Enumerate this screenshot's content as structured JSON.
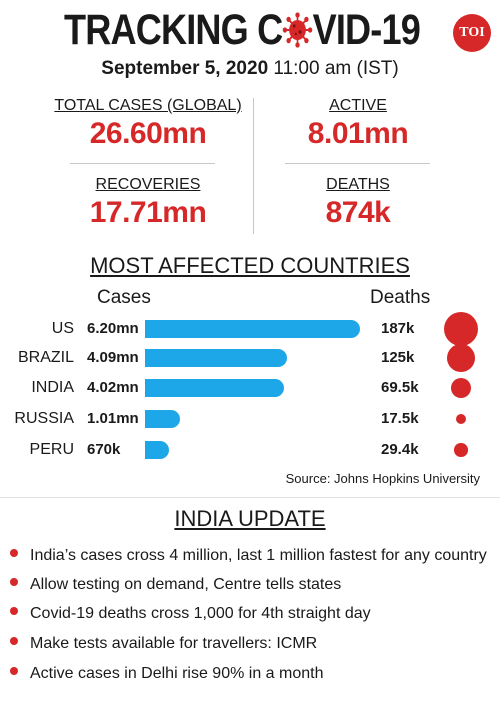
{
  "header": {
    "title_left": "TRACKING C",
    "title_right": "VID-19",
    "publisher_badge": "TOI",
    "date": "September 5, 2020",
    "time": "11:00 am (IST)"
  },
  "stats": {
    "total_cases": {
      "label": "TOTAL CASES (GLOBAL)",
      "value": "26.60mn"
    },
    "active": {
      "label": "ACTIVE",
      "value": "8.01mn"
    },
    "recoveries": {
      "label": "RECOVERIES",
      "value": "17.71mn"
    },
    "deaths": {
      "label": "DEATHS",
      "value": "874k"
    }
  },
  "chart_title": "MOST AFFECTED COUNTRIES",
  "chart_data": {
    "type": "bar",
    "title": "MOST AFFECTED COUNTRIES",
    "categories": [
      "US",
      "BRAZIL",
      "INDIA",
      "RUSSIA",
      "PERU"
    ],
    "series": [
      {
        "name": "Cases",
        "values": [
          6.2,
          4.09,
          4.02,
          1.01,
          0.67
        ],
        "labels": [
          "6.20mn",
          "4.09mn",
          "4.02mn",
          "1.01mn",
          "670k"
        ],
        "unit": "mn"
      },
      {
        "name": "Deaths",
        "values": [
          187,
          125,
          69.5,
          17.5,
          29.4
        ],
        "labels": [
          "187k",
          "125k",
          "69.5k",
          "17.5k",
          "29.4k"
        ],
        "unit": "k"
      }
    ],
    "cases_color": "#1ea7e8",
    "deaths_color": "#d62828",
    "source": "Source: Johns Hopkins University"
  },
  "india_update": {
    "title": "INDIA UPDATE",
    "items": [
      "India’s cases cross 4 million, last 1 million fastest for any country",
      "Allow testing on demand, Centre tells states",
      "Covid-19 deaths cross 1,000 for 4th straight day",
      "Make tests available for travellers: ICMR",
      "Active cases in Delhi rise 90% in a month"
    ]
  },
  "colors": {
    "accent_red": "#d62828",
    "bar_blue": "#1ea7e8"
  },
  "icons": [
    "virus-icon"
  ]
}
